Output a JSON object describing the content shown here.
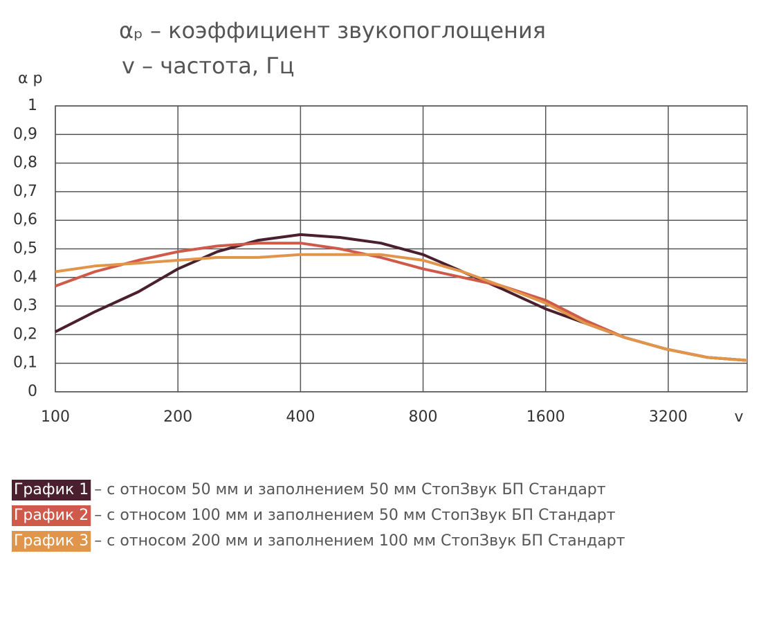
{
  "chart_data": {
    "type": "line",
    "title_lines": [
      "αₚ – коэффициент звукопоглощения",
      "v – частота, Гц"
    ],
    "y_label": "α p",
    "x_label": "v",
    "x": [
      100,
      125,
      160,
      200,
      250,
      315,
      400,
      500,
      630,
      800,
      1000,
      1250,
      1600,
      2000,
      2500,
      3150,
      4000,
      5000
    ],
    "xlim": [
      100,
      5000
    ],
    "xticks": [
      100,
      200,
      400,
      800,
      1600,
      3200
    ],
    "xscale": "log",
    "ylim": [
      0,
      1
    ],
    "yticks": [
      0,
      {
        "value": 0.1,
        "label": "0,1"
      },
      {
        "value": 0.2,
        "label": "0,2"
      },
      {
        "value": 0.3,
        "label": "0,3"
      },
      {
        "value": 0.4,
        "label": "0,4"
      },
      {
        "value": 0.5,
        "label": "0,5"
      },
      {
        "value": 0.6,
        "label": "0,6"
      },
      {
        "value": 0.7,
        "label": "0,7"
      },
      {
        "value": 0.8,
        "label": "0,8"
      },
      {
        "value": 0.9,
        "label": "0,9"
      },
      1
    ],
    "grid": true,
    "series": [
      {
        "name": "График 1",
        "description": "– с относом 50 мм и заполнением 50 мм СтопЗвук БП Стандарт",
        "color": "#4a1f2e",
        "values": [
          0.21,
          0.28,
          0.35,
          0.43,
          0.49,
          0.53,
          0.55,
          0.54,
          0.52,
          0.48,
          0.42,
          0.36,
          0.29,
          0.24,
          0.19,
          0.15,
          0.12,
          0.11
        ]
      },
      {
        "name": "График 2",
        "description": "– с относом 100 мм и заполнением 50 мм СтопЗвук БП Стандарт",
        "color": "#d05a4a",
        "values": [
          0.37,
          0.42,
          0.46,
          0.49,
          0.51,
          0.52,
          0.52,
          0.5,
          0.47,
          0.43,
          0.4,
          0.37,
          0.32,
          0.25,
          0.19,
          0.15,
          0.12,
          0.11
        ]
      },
      {
        "name": "График 3",
        "description": "– с относом 200 мм и заполнением 100 мм СтопЗвук БП Стандарт",
        "color": "#e0954a",
        "values": [
          0.42,
          0.44,
          0.45,
          0.46,
          0.47,
          0.47,
          0.48,
          0.48,
          0.48,
          0.46,
          0.42,
          0.37,
          0.31,
          0.24,
          0.19,
          0.15,
          0.12,
          0.11
        ]
      }
    ]
  }
}
